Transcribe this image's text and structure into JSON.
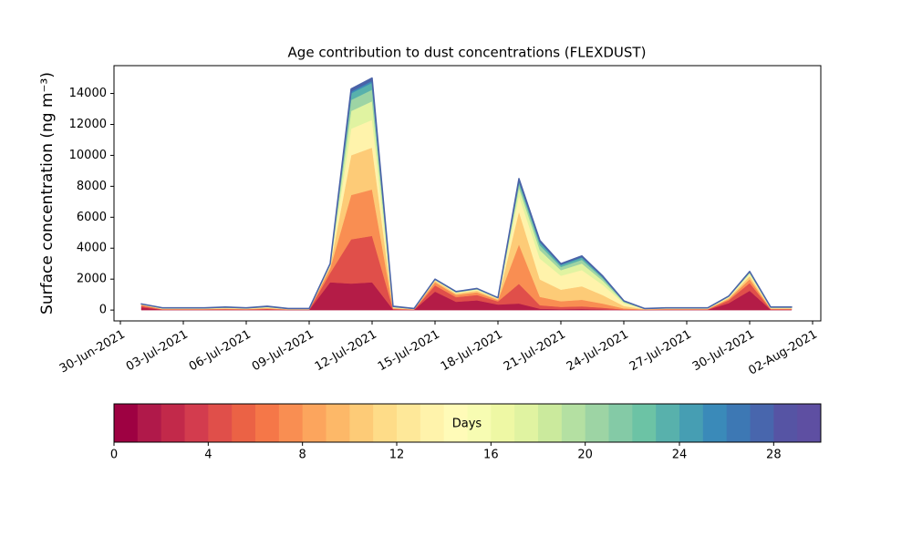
{
  "chart_data": {
    "type": "stacked-area",
    "title": "Age contribution to dust concentrations (FLEXDUST)",
    "y_label": "Surface concentration (ng m⁻³)",
    "x": [
      "01-Jul-2021",
      "02-Jul-2021",
      "03-Jul-2021",
      "04-Jul-2021",
      "05-Jul-2021",
      "06-Jul-2021",
      "07-Jul-2021",
      "08-Jul-2021",
      "09-Jul-2021",
      "10-Jul-2021",
      "11-Jul-2021",
      "12-Jul-2021",
      "13-Jul-2021",
      "14-Jul-2021",
      "15-Jul-2021",
      "16-Jul-2021",
      "17-Jul-2021",
      "18-Jul-2021",
      "19-Jul-2021",
      "20-Jul-2021",
      "21-Jul-2021",
      "22-Jul-2021",
      "23-Jul-2021",
      "24-Jul-2021",
      "25-Jul-2021",
      "26-Jul-2021",
      "27-Jul-2021",
      "28-Jul-2021",
      "29-Jul-2021",
      "30-Jul-2021",
      "31-Jul-2021",
      "01-Aug-2021"
    ],
    "xlim": [
      "30-Jun-2021",
      "02-Aug-2021"
    ],
    "xticks": [
      "30-Jun-2021",
      "03-Jul-2021",
      "06-Jul-2021",
      "09-Jul-2021",
      "12-Jul-2021",
      "15-Jul-2021",
      "18-Jul-2021",
      "21-Jul-2021",
      "24-Jul-2021",
      "27-Jul-2021",
      "30-Jul-2021",
      "02-Aug-2021"
    ],
    "ylim": [
      -700,
      15800
    ],
    "yticks": [
      0,
      2000,
      4000,
      6000,
      8000,
      10000,
      12000,
      14000
    ],
    "series": [
      {
        "color": "#b41c47",
        "values": [
          180,
          22,
          22,
          22,
          30,
          22,
          38,
          15,
          15,
          1800,
          1716,
          1800,
          38,
          15,
          1200,
          540,
          630,
          360,
          425,
          90,
          60,
          70,
          44,
          12,
          15,
          22,
          22,
          22,
          450,
          1250,
          30,
          30
        ]
      },
      {
        "color": "#e04f4a",
        "values": [
          100,
          22,
          22,
          22,
          30,
          22,
          38,
          15,
          15,
          600,
          2860,
          3000,
          38,
          15,
          400,
          300,
          350,
          200,
          1275,
          225,
          150,
          175,
          110,
          30,
          15,
          22,
          22,
          22,
          180,
          500,
          30,
          30
        ]
      },
      {
        "color": "#f98e52",
        "values": [
          50,
          22,
          22,
          22,
          30,
          22,
          38,
          15,
          15,
          300,
          2860,
          3000,
          38,
          15,
          200,
          144,
          168,
          96,
          2550,
          540,
          360,
          420,
          264,
          72,
          15,
          22,
          22,
          22,
          90,
          250,
          30,
          30
        ]
      },
      {
        "color": "#fdcb77",
        "values": [
          30,
          22,
          22,
          22,
          30,
          22,
          38,
          15,
          15,
          150,
          2574,
          2700,
          38,
          15,
          100,
          96,
          112,
          64,
          2125,
          1125,
          750,
          875,
          550,
          150,
          15,
          22,
          22,
          22,
          72,
          200,
          30,
          30
        ]
      },
      {
        "color": "#fff3ab",
        "values": [
          15,
          15,
          15,
          15,
          20,
          15,
          25,
          10,
          10,
          60,
          1716,
          1800,
          25,
          10,
          40,
          48,
          56,
          32,
          1020,
          1350,
          900,
          1050,
          660,
          180,
          10,
          15,
          15,
          15,
          45,
          125,
          20,
          20
        ]
      },
      {
        "color": "#e0f3a1",
        "values": [
          10,
          15,
          15,
          15,
          20,
          15,
          25,
          10,
          10,
          30,
          1144,
          1200,
          25,
          10,
          20,
          24,
          28,
          16,
          510,
          540,
          360,
          420,
          264,
          72,
          10,
          15,
          15,
          15,
          27,
          75,
          20,
          20
        ]
      },
      {
        "color": "#9dd4a4",
        "values": [
          5,
          8,
          8,
          8,
          10,
          8,
          12,
          5,
          5,
          30,
          715,
          750,
          12,
          5,
          20,
          24,
          28,
          16,
          255,
          315,
          210,
          245,
          154,
          42,
          5,
          8,
          8,
          8,
          18,
          50,
          10,
          10
        ]
      },
      {
        "color": "#58b1ac",
        "values": [
          5,
          8,
          8,
          8,
          10,
          8,
          12,
          5,
          5,
          15,
          429,
          450,
          12,
          5,
          10,
          12,
          14,
          8,
          170,
          180,
          120,
          140,
          88,
          24,
          5,
          8,
          8,
          8,
          9,
          25,
          10,
          10
        ]
      },
      {
        "color": "#3a8ab9",
        "values": [
          3,
          8,
          8,
          8,
          10,
          8,
          12,
          5,
          5,
          10,
          143,
          150,
          12,
          5,
          6,
          6,
          7,
          4,
          85,
          90,
          60,
          70,
          44,
          12,
          5,
          8,
          8,
          8,
          5,
          13,
          10,
          10
        ]
      },
      {
        "color": "#4a63a8",
        "values": [
          2,
          8,
          8,
          8,
          10,
          8,
          12,
          5,
          5,
          5,
          143,
          150,
          12,
          5,
          4,
          6,
          7,
          4,
          85,
          45,
          30,
          35,
          22,
          6,
          5,
          8,
          8,
          8,
          4,
          12,
          10,
          10
        ]
      }
    ],
    "colorbar": {
      "label": "Days",
      "lim": [
        0,
        30
      ],
      "ticks": [
        0,
        4,
        8,
        12,
        16,
        20,
        24,
        28
      ],
      "colors": [
        "#9e0142",
        "#b0194a",
        "#c2294a",
        "#d33c4e",
        "#e04f4a",
        "#eb6245",
        "#f57748",
        "#f98e52",
        "#fca55d",
        "#fdb868",
        "#fdcb77",
        "#fedc88",
        "#fee899",
        "#fff3ab",
        "#fffbb8",
        "#f7fcb2",
        "#eef8a4",
        "#e0f3a1",
        "#cbea9d",
        "#b4e0a2",
        "#9dd4a4",
        "#84caa6",
        "#6cc3a5",
        "#58b1ac",
        "#469eb3",
        "#3a8ab9",
        "#3d78b4",
        "#4866ad",
        "#5654a4",
        "#5e4fa2"
      ]
    }
  }
}
